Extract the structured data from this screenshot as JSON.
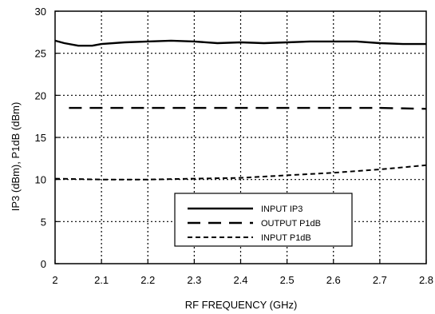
{
  "chart_data": {
    "type": "line",
    "title": "",
    "xlabel": "RF FREQUENCY (GHz)",
    "ylabel": "IP3 (dBm), P1dB (dBm)",
    "xlim": [
      2,
      2.8
    ],
    "ylim": [
      0,
      30
    ],
    "xticks": [
      "2",
      "2.1",
      "2.2",
      "2.3",
      "2.4",
      "2.5",
      "2.6",
      "2.7",
      "2.8"
    ],
    "yticks": [
      "0",
      "5",
      "10",
      "15",
      "20",
      "25",
      "30"
    ],
    "grid": true,
    "legend_position": "lower-right",
    "series": [
      {
        "name": "INPUT IP3",
        "line_style": "solid",
        "x": [
          2.0,
          2.02,
          2.05,
          2.08,
          2.1,
          2.15,
          2.2,
          2.25,
          2.3,
          2.35,
          2.4,
          2.45,
          2.5,
          2.55,
          2.6,
          2.65,
          2.7,
          2.75,
          2.8
        ],
        "y": [
          26.5,
          26.2,
          25.9,
          25.9,
          26.1,
          26.3,
          26.4,
          26.5,
          26.4,
          26.2,
          26.3,
          26.2,
          26.3,
          26.4,
          26.4,
          26.4,
          26.2,
          26.1,
          26.1
        ]
      },
      {
        "name": "OUTPUT P1dB",
        "line_style": "long-dash",
        "x": [
          2.03,
          2.1,
          2.2,
          2.3,
          2.4,
          2.5,
          2.6,
          2.7,
          2.8
        ],
        "y": [
          18.5,
          18.5,
          18.5,
          18.5,
          18.5,
          18.5,
          18.5,
          18.5,
          18.4
        ]
      },
      {
        "name": "INPUT P1dB",
        "line_style": "short-dash",
        "x": [
          2.0,
          2.1,
          2.2,
          2.3,
          2.4,
          2.5,
          2.6,
          2.7,
          2.8
        ],
        "y": [
          10.1,
          10.0,
          10.0,
          10.1,
          10.2,
          10.5,
          10.8,
          11.2,
          11.7
        ]
      }
    ]
  }
}
